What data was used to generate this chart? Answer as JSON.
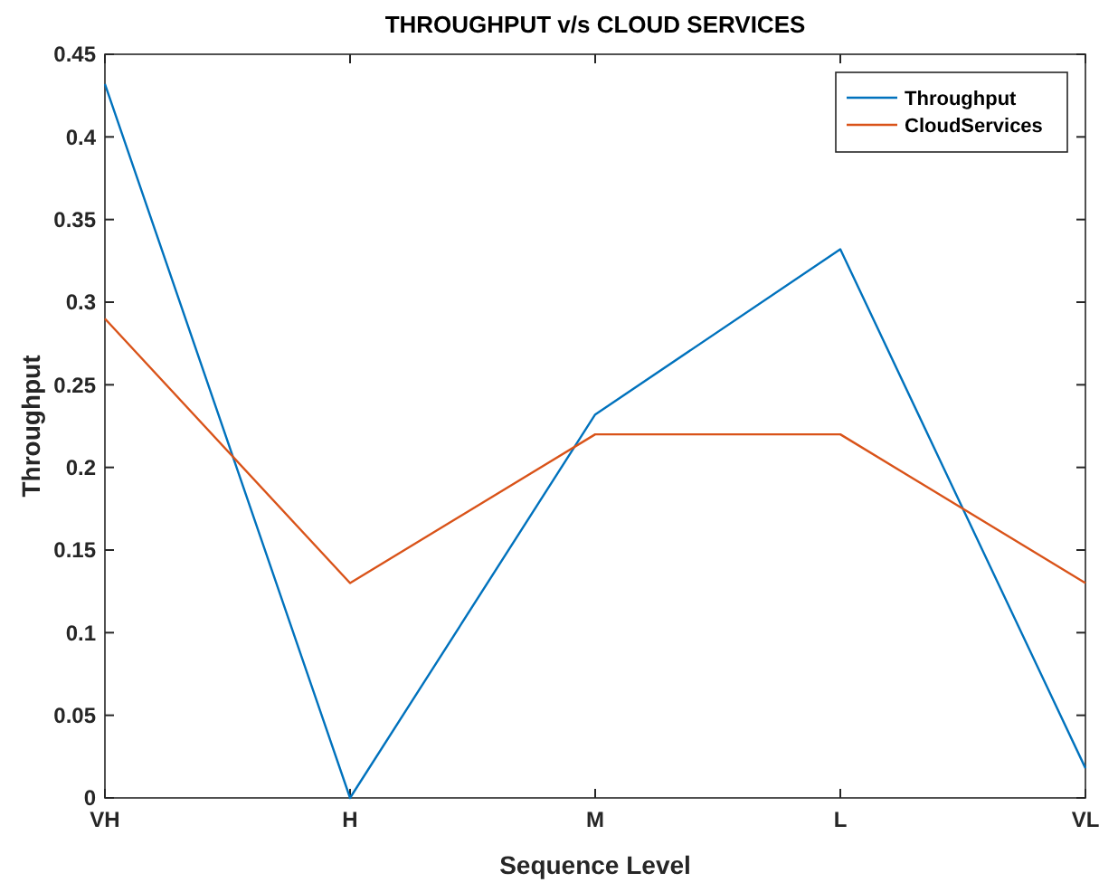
{
  "chart_data": {
    "type": "line",
    "title": "THROUGHPUT v/s CLOUD SERVICES",
    "xlabel": "Sequence Level",
    "ylabel": "Throughput",
    "categories": [
      "VH",
      "H",
      "M",
      "L",
      "VL"
    ],
    "series": [
      {
        "name": "Throughput",
        "color": "#0072bd",
        "values": [
          0.432,
          0.0,
          0.232,
          0.332,
          0.018
        ]
      },
      {
        "name": "CloudServices",
        "color": "#d95319",
        "values": [
          0.29,
          0.13,
          0.22,
          0.22,
          0.13
        ]
      }
    ],
    "ylim": [
      0,
      0.45
    ],
    "yticks": [
      0,
      0.05,
      0.1,
      0.15,
      0.2,
      0.25,
      0.3,
      0.35,
      0.4,
      0.45
    ],
    "grid": false,
    "legend": "top right",
    "marker": "none",
    "line_style": "solid"
  }
}
